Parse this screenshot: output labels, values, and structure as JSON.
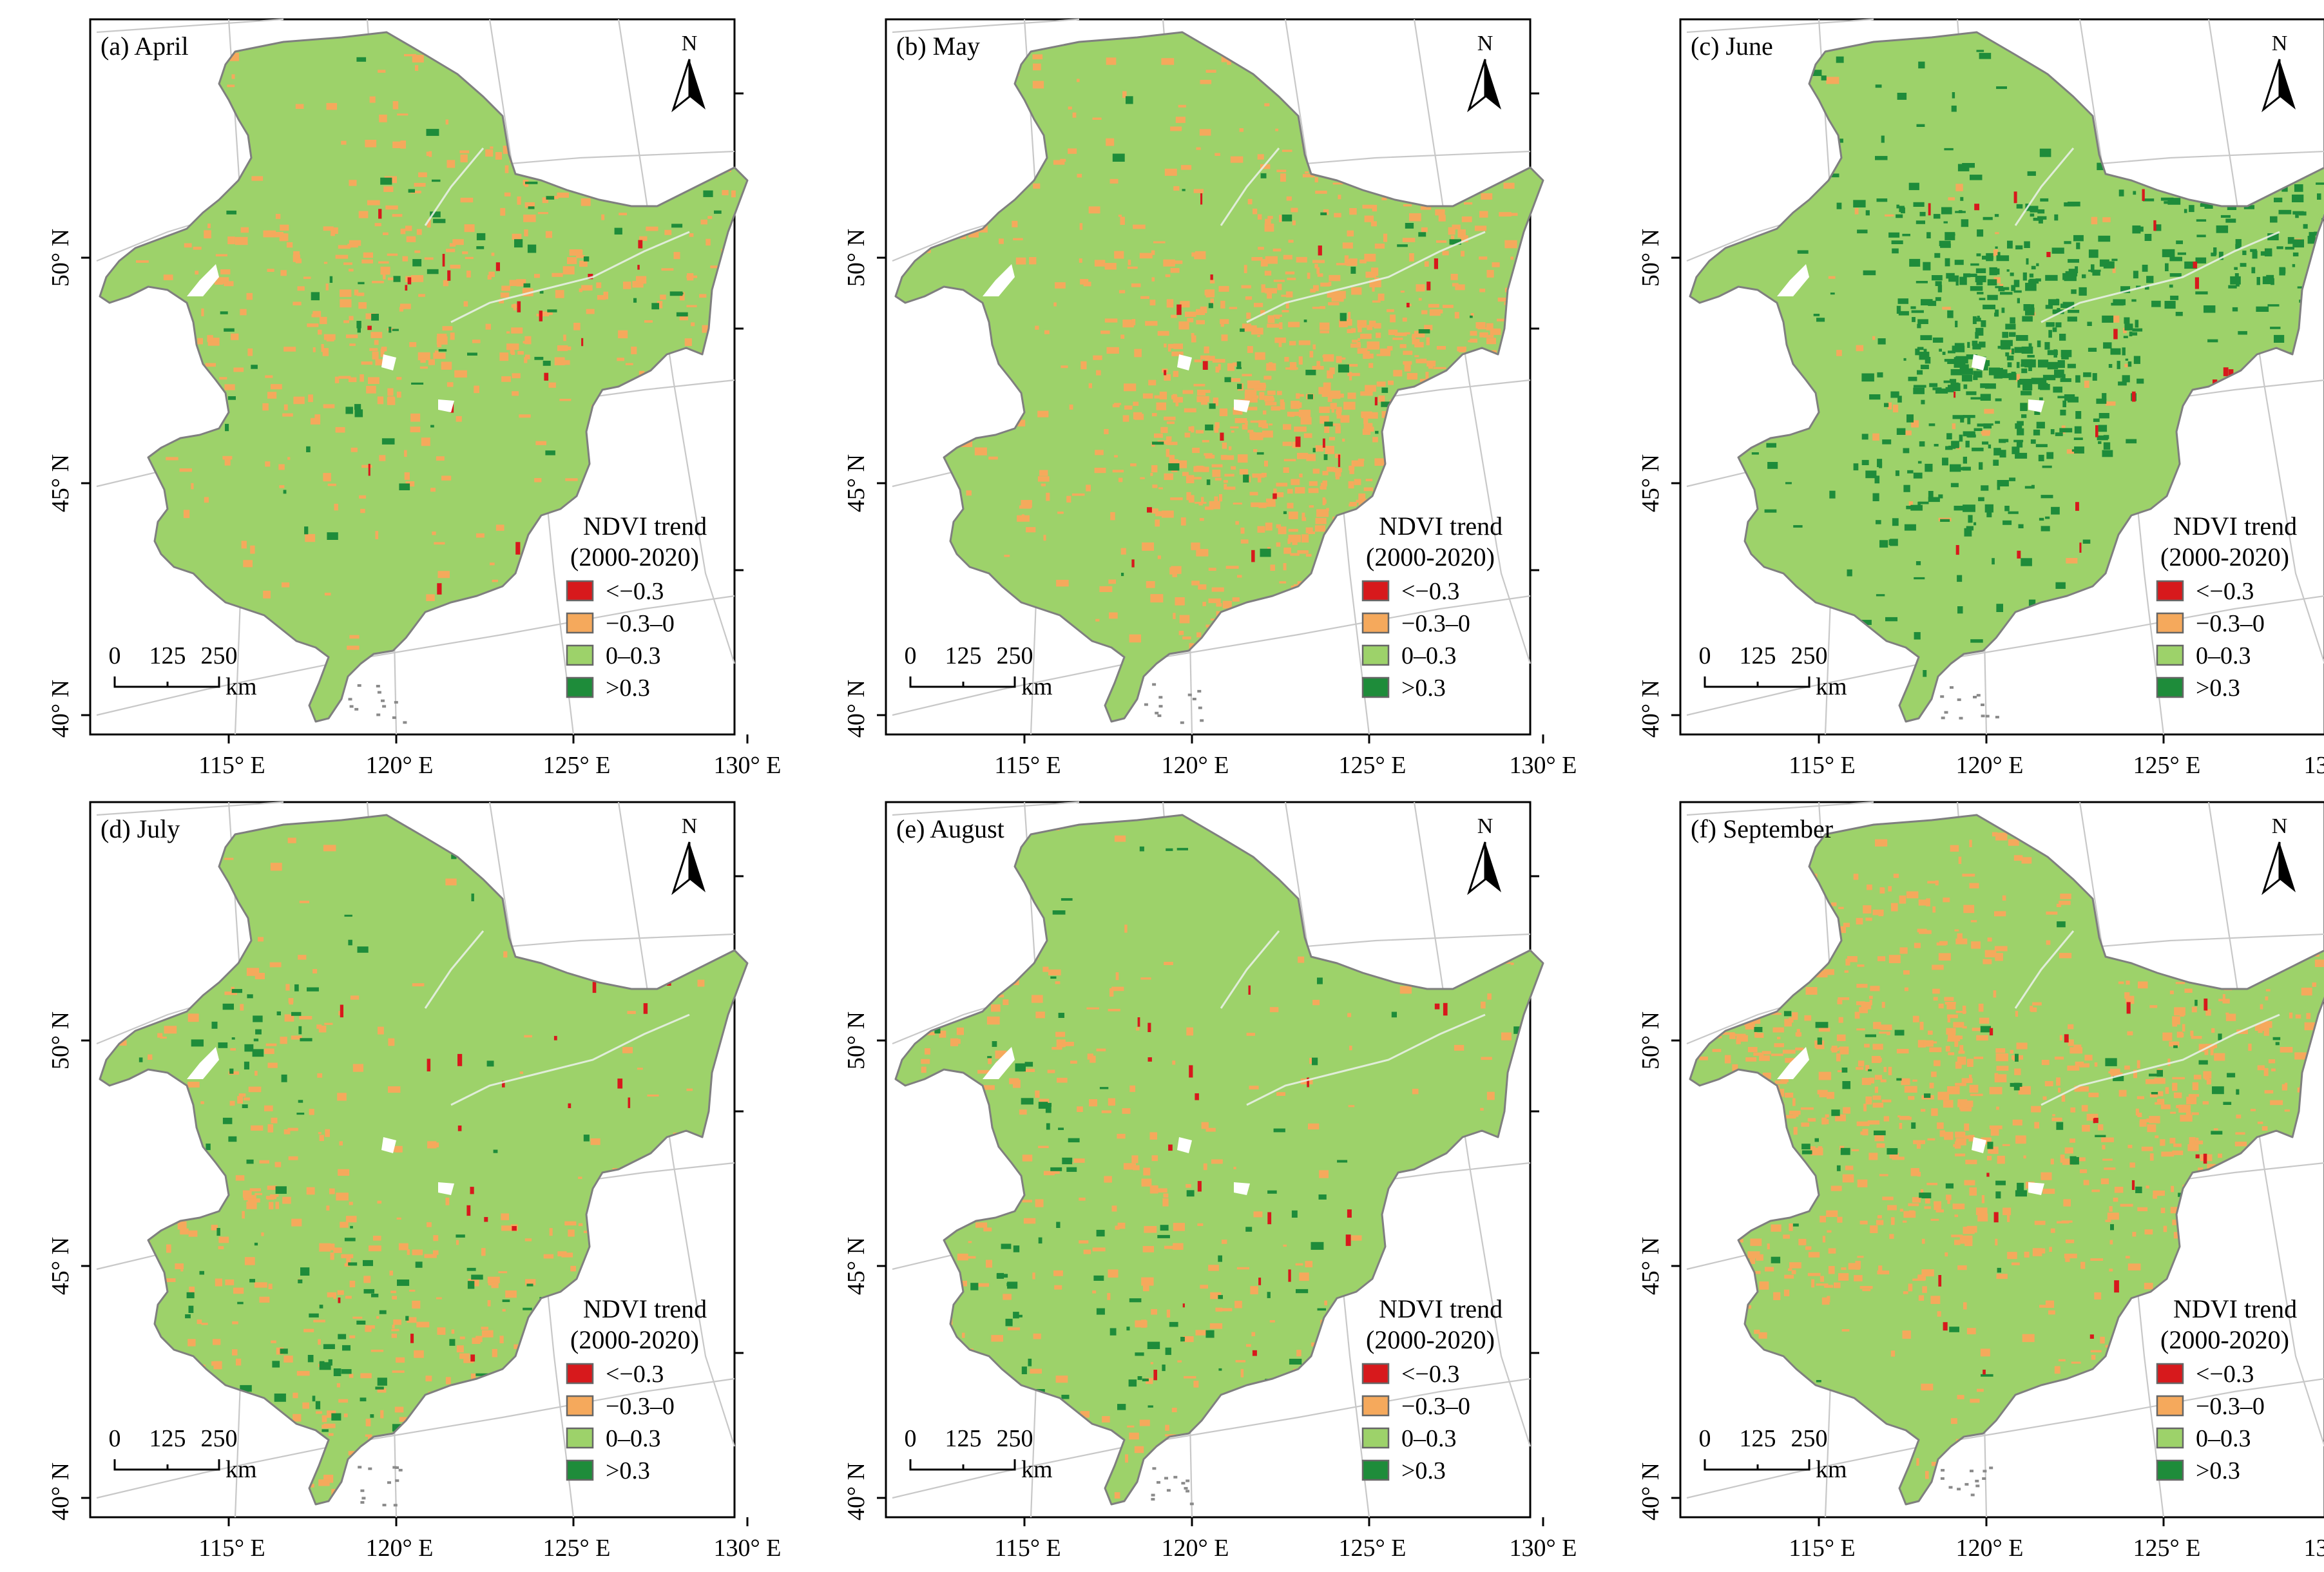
{
  "figure": {
    "colors": {
      "strong_decrease": "#d7191c",
      "weak_decrease": "#f5a95c",
      "weak_increase": "#9dd26a",
      "strong_increase": "#1e8c3a",
      "water": "#ffffff",
      "outline": "#7f7f7f",
      "graticule": "#c8c8c8"
    },
    "north_label": "N",
    "scale_bar": {
      "ticks": [
        "0",
        "125",
        "250"
      ],
      "unit": "km"
    },
    "legend": {
      "title_line1": "NDVI trend",
      "title_line2": "(2000-2020)",
      "classes": [
        {
          "label": "<−0.3",
          "color_key": "strong_decrease"
        },
        {
          "label": "−0.3–0",
          "color_key": "weak_decrease"
        },
        {
          "label": "0–0.3",
          "color_key": "weak_increase"
        },
        {
          "label": ">0.3",
          "color_key": "strong_increase"
        }
      ]
    },
    "lon_labels": [
      "115° E",
      "120° E",
      "125° E",
      "130° E"
    ],
    "lat_labels": [
      "50° N",
      "45° N",
      "40° N"
    ],
    "panels": [
      {
        "id": "a",
        "title": "(a) April",
        "dominant": "weak_increase",
        "orange_share": 0.18,
        "dark_green_share": 0.03
      },
      {
        "id": "b",
        "title": "(b) May",
        "dominant": "weak_increase",
        "orange_share": 0.4,
        "dark_green_share": 0.02
      },
      {
        "id": "c",
        "title": "(c) June",
        "dominant": "weak_increase",
        "orange_share": 0.02,
        "dark_green_share": 0.3
      },
      {
        "id": "d",
        "title": "(d) July",
        "dominant": "weak_increase",
        "orange_share": 0.15,
        "dark_green_share": 0.05
      },
      {
        "id": "e",
        "title": "(e) August",
        "dominant": "weak_increase",
        "orange_share": 0.12,
        "dark_green_share": 0.04
      },
      {
        "id": "f",
        "title": "(f) September",
        "dominant": "weak_increase",
        "orange_share": 0.38,
        "dark_green_share": 0.04
      }
    ]
  }
}
